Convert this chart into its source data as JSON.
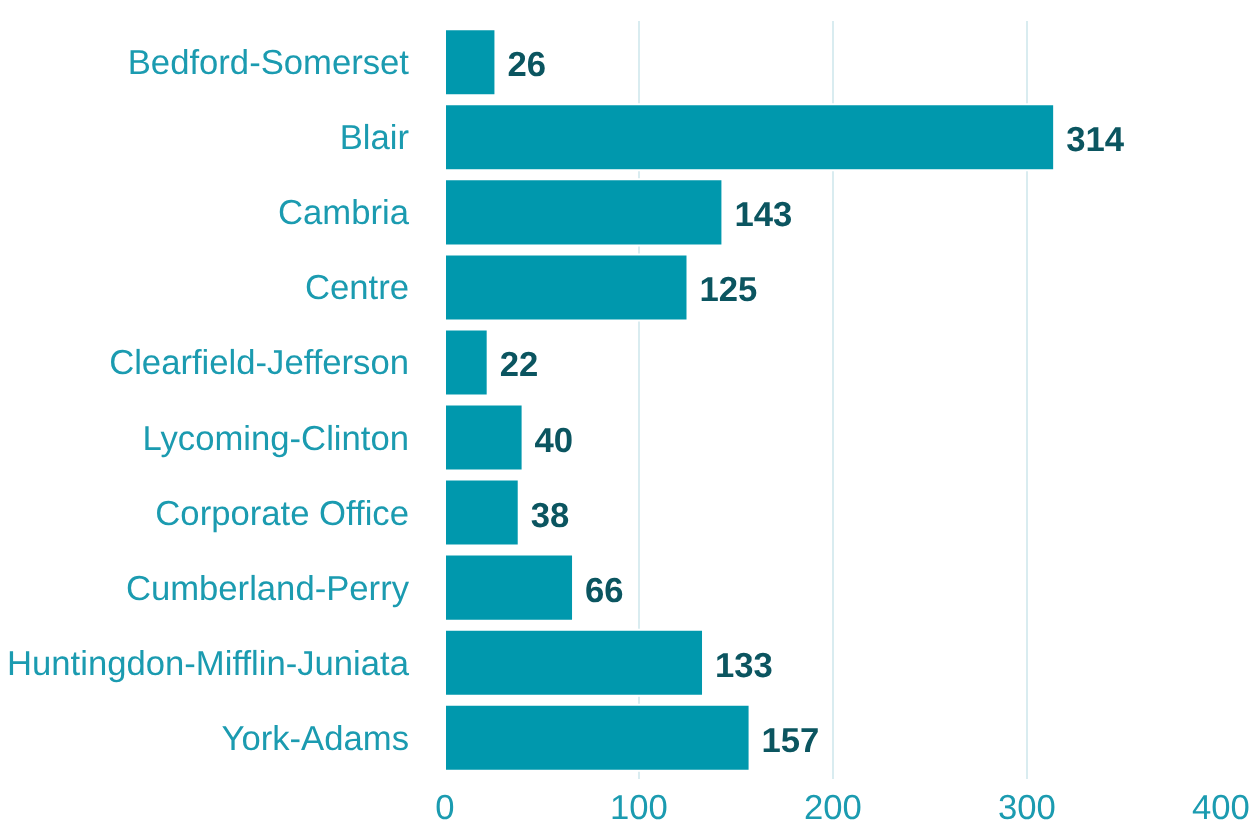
{
  "chart_data": {
    "type": "bar",
    "orientation": "horizontal",
    "categories": [
      "Bedford-Somerset",
      "Blair",
      "Cambria",
      "Centre",
      "Clearfield-Jefferson",
      "Lycoming-Clinton",
      "Corporate Office",
      "Cumberland-Perry",
      "Huntingdon-Mifflin-Juniata",
      "York-Adams"
    ],
    "values": [
      26,
      314,
      143,
      125,
      22,
      40,
      38,
      66,
      133,
      157
    ],
    "color": "#0098ad",
    "xlim": [
      0,
      400
    ],
    "xticks": [
      0,
      100,
      200,
      300,
      400
    ],
    "grid": "x",
    "data_labels": true
  }
}
